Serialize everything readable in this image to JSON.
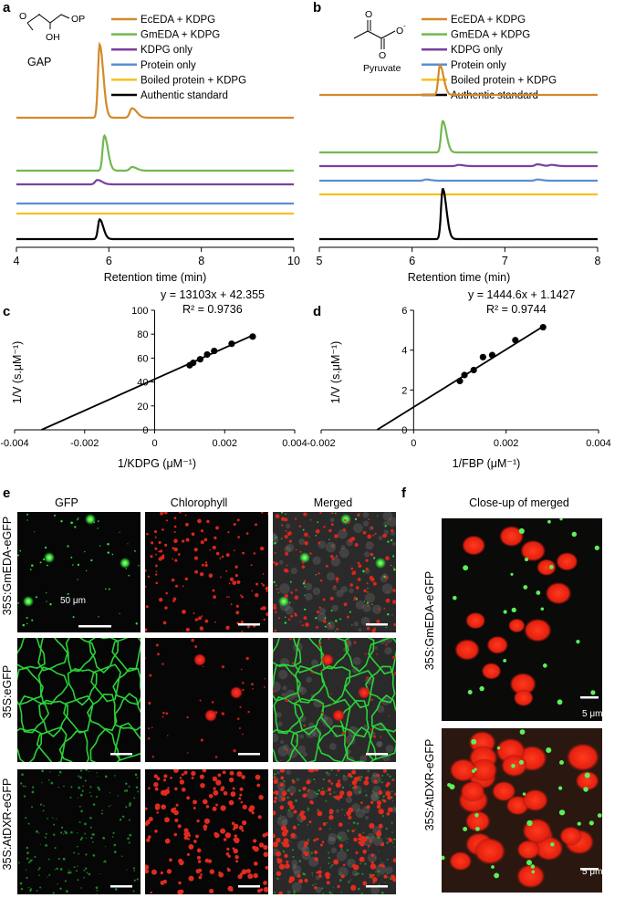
{
  "panels": {
    "a": {
      "letter": "a",
      "molecule": "GAP",
      "mol_o": "O",
      "mol_oh": "OH",
      "mol_op": "OP",
      "legend": [
        "EcEDA + KDPG",
        "GmEDA + KDPG",
        "KDPG only",
        "Protein only",
        "Boiled protein + KDPG",
        "Authentic standard"
      ],
      "xticks": [
        "4",
        "6",
        "8",
        "10"
      ],
      "xlabel": "Retention time (min)"
    },
    "b": {
      "letter": "b",
      "molecule": "Pyruvate",
      "mol_o1": "O",
      "mol_o2": "O",
      "mol_ominus": "O",
      "legend": [
        "EcEDA + KDPG",
        "GmEDA + KDPG",
        "KDPG only",
        "Protein only",
        "Boiled protein + KDPG",
        "Authentic standard"
      ],
      "xticks": [
        "5",
        "6",
        "7",
        "8"
      ],
      "xlabel": "Retention time (min)"
    },
    "c": {
      "letter": "c",
      "equation": "y = 13103x + 42.355",
      "r2": "R² = 0.9736",
      "xticks": [
        "-0.004",
        "-0.002",
        "0",
        "0.002",
        "0.004"
      ],
      "yticks": [
        "0",
        "20",
        "40",
        "60",
        "80",
        "100"
      ],
      "xlabel": "1/KDPG (μM⁻¹)",
      "ylabel": "1/V (s.μM⁻¹)"
    },
    "d": {
      "letter": "d",
      "equation": "y = 1444.6x + 1.1427",
      "r2": "R² = 0.9744",
      "xticks": [
        "-0.002",
        "0",
        "0.002",
        "0.004"
      ],
      "yticks": [
        "0",
        "2",
        "4",
        "6"
      ],
      "xlabel": "1/FBP (μM⁻¹)",
      "ylabel": "1/V (s.μM⁻¹)"
    },
    "e": {
      "letter": "e",
      "cols": [
        "GFP",
        "Chlorophyll",
        "Merged"
      ],
      "rows": [
        "35S:GmEDA-eGFP",
        "35S:eGFP",
        "35S:AtDXR-eGFP"
      ],
      "scalebar": "50 μm"
    },
    "f": {
      "letter": "f",
      "title": "Close-up of merged",
      "rows": [
        "35S:GmEDA-eGFP",
        "35S:AtDXR-eGFP"
      ],
      "scalebar": "5 μm"
    }
  },
  "colors": {
    "ec": "#d4892a",
    "gm": "#72b851",
    "kdpg": "#7b3fa0",
    "prot": "#5a8fd0",
    "boiled": "#f3c31e",
    "std": "#000000"
  },
  "chart_data": [
    {
      "type": "line",
      "panel": "a",
      "xlabel": "Retention time (min)",
      "xlim": [
        4,
        10
      ],
      "series": [
        {
          "name": "EcEDA + KDPG",
          "peaks": [
            {
              "x": 5.8,
              "height": 1.0
            },
            {
              "x": 6.5,
              "height": 0.13
            }
          ]
        },
        {
          "name": "GmEDA + KDPG",
          "peaks": [
            {
              "x": 5.9,
              "height": 0.48
            },
            {
              "x": 6.5,
              "height": 0.05
            }
          ]
        },
        {
          "name": "KDPG only",
          "peaks": [
            {
              "x": 5.75,
              "height": 0.06
            }
          ]
        },
        {
          "name": "Protein only",
          "peaks": []
        },
        {
          "name": "Boiled protein + KDPG",
          "peaks": []
        },
        {
          "name": "Authentic standard",
          "peaks": [
            {
              "x": 5.8,
              "height": 0.27
            }
          ]
        }
      ]
    },
    {
      "type": "line",
      "panel": "b",
      "xlabel": "Retention time (min)",
      "xlim": [
        5,
        8
      ],
      "series": [
        {
          "name": "EcEDA + KDPG",
          "peaks": [
            {
              "x": 6.3,
              "height": 0.5
            }
          ]
        },
        {
          "name": "GmEDA + KDPG",
          "peaks": [
            {
              "x": 6.33,
              "height": 0.53
            }
          ]
        },
        {
          "name": "KDPG only",
          "peaks": [
            {
              "x": 6.5,
              "height": 0.02
            },
            {
              "x": 7.35,
              "height": 0.03
            },
            {
              "x": 7.5,
              "height": 0.02
            }
          ]
        },
        {
          "name": "Protein only",
          "peaks": [
            {
              "x": 6.15,
              "height": 0.02
            },
            {
              "x": 7.35,
              "height": 0.02
            }
          ]
        },
        {
          "name": "Boiled protein + KDPG",
          "peaks": []
        },
        {
          "name": "Authentic standard",
          "peaks": [
            {
              "x": 6.33,
              "height": 0.85
            }
          ]
        }
      ]
    },
    {
      "type": "scatter",
      "panel": "c",
      "xlabel": "1/KDPG (μM⁻¹)",
      "ylabel": "1/V (s.μM⁻¹)",
      "xlim": [
        -0.004,
        0.004
      ],
      "ylim": [
        0,
        100
      ],
      "x": [
        0.001,
        0.0011,
        0.0013,
        0.0015,
        0.0017,
        0.0022,
        0.0028
      ],
      "y": [
        54,
        56,
        59,
        63,
        66,
        72,
        78
      ],
      "fit": {
        "slope": 13103,
        "intercept": 42.355
      }
    },
    {
      "type": "scatter",
      "panel": "d",
      "xlabel": "1/FBP (μM⁻¹)",
      "ylabel": "1/V (s.μM⁻¹)",
      "xlim": [
        -0.002,
        0.004
      ],
      "ylim": [
        0,
        6
      ],
      "x": [
        0.001,
        0.0011,
        0.0013,
        0.0015,
        0.0017,
        0.0022,
        0.0028
      ],
      "y": [
        2.45,
        2.75,
        3.0,
        3.65,
        3.75,
        4.5,
        5.15
      ],
      "fit": {
        "slope": 1444.6,
        "intercept": 1.1427
      }
    }
  ]
}
